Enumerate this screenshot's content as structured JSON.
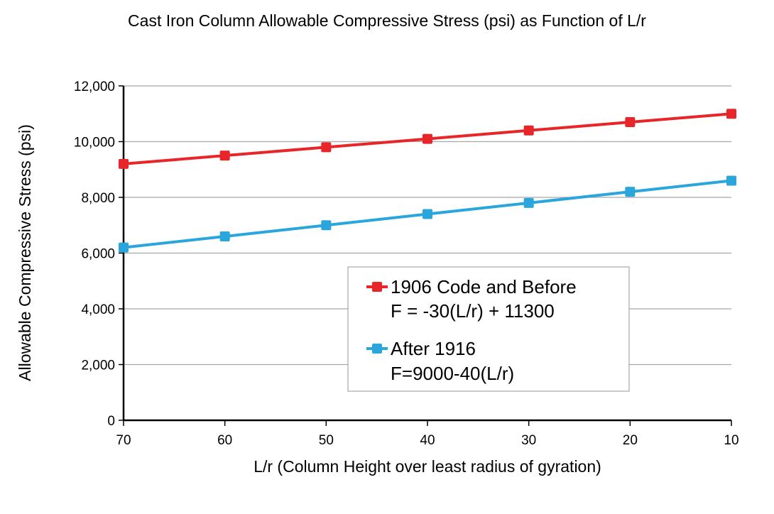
{
  "chart_data": {
    "type": "line",
    "title": "Cast Iron Column Allowable Compressive Stress (psi) as Function of L/r",
    "xlabel": "L/r (Column Height over least radius of gyration)",
    "ylabel": "Allowable Compressive Stress (psi)",
    "x": [
      70,
      60,
      50,
      40,
      30,
      20,
      10
    ],
    "x_tick_labels": [
      "70",
      "60",
      "50",
      "40",
      "30",
      "20",
      "10"
    ],
    "xlim": [
      70,
      10
    ],
    "ylim": [
      0,
      12000
    ],
    "y_ticks": [
      0,
      2000,
      4000,
      6000,
      8000,
      10000,
      12000
    ],
    "y_tick_labels": [
      "0",
      "2,000",
      "4,000",
      "6,000",
      "8,000",
      "10,000",
      "12,000"
    ],
    "grid": true,
    "legend_position": "center-right",
    "series": [
      {
        "name": "1906 Code and Before",
        "formula": "F = -30(L/r) + 11300",
        "color": "#e8262a",
        "values": [
          9200,
          9500,
          9800,
          10100,
          10400,
          10700,
          11000
        ]
      },
      {
        "name": "After 1916",
        "formula": "F=9000-40(L/r)",
        "color": "#2aa6dc",
        "values": [
          6200,
          6600,
          7000,
          7400,
          7800,
          8200,
          8600
        ]
      }
    ]
  }
}
